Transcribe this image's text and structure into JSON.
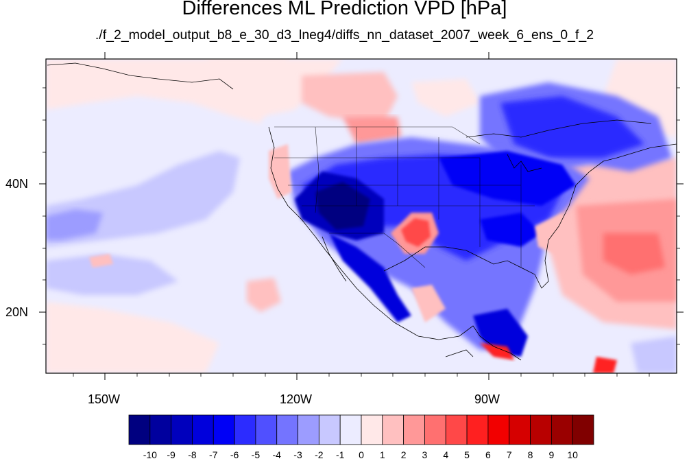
{
  "title": "Differences ML Prediction VPD [hPa]",
  "subtitle": "./f_2_model_output_b8_e_30_d3_lneg4/diffs_nn_dataset_2007_week_6_ens_0_f_2",
  "axes": {
    "lon_ticks": [
      {
        "value": -150,
        "label": "150W"
      },
      {
        "value": -120,
        "label": "120W"
      },
      {
        "value": -90,
        "label": "90W"
      }
    ],
    "lat_ticks": [
      {
        "value": 40,
        "label": "40N"
      },
      {
        "value": 20,
        "label": "20N"
      }
    ]
  },
  "colorbar": {
    "labels": [
      "-10",
      "-9",
      "-8",
      "-7",
      "-6",
      "-5",
      "-4",
      "-3",
      "-2",
      "-1",
      "0",
      "1",
      "2",
      "3",
      "4",
      "5",
      "6",
      "7",
      "8",
      "9",
      "10"
    ],
    "colors": [
      "#000080",
      "#00009e",
      "#0000bd",
      "#0000dc",
      "#0000f6",
      "#2c2cff",
      "#5050ff",
      "#7474ff",
      "#9c9cff",
      "#c8c8ff",
      "#ececff",
      "#ffe8e8",
      "#ffc0c0",
      "#ff9898",
      "#ff7070",
      "#ff4848",
      "#ff2020",
      "#f20000",
      "#d60000",
      "#b80000",
      "#9a0000",
      "#800000"
    ]
  },
  "colors": {
    "background_blue": "#e6e6ff",
    "background_red": "#ffe6e6",
    "coastline": "#000000"
  }
}
